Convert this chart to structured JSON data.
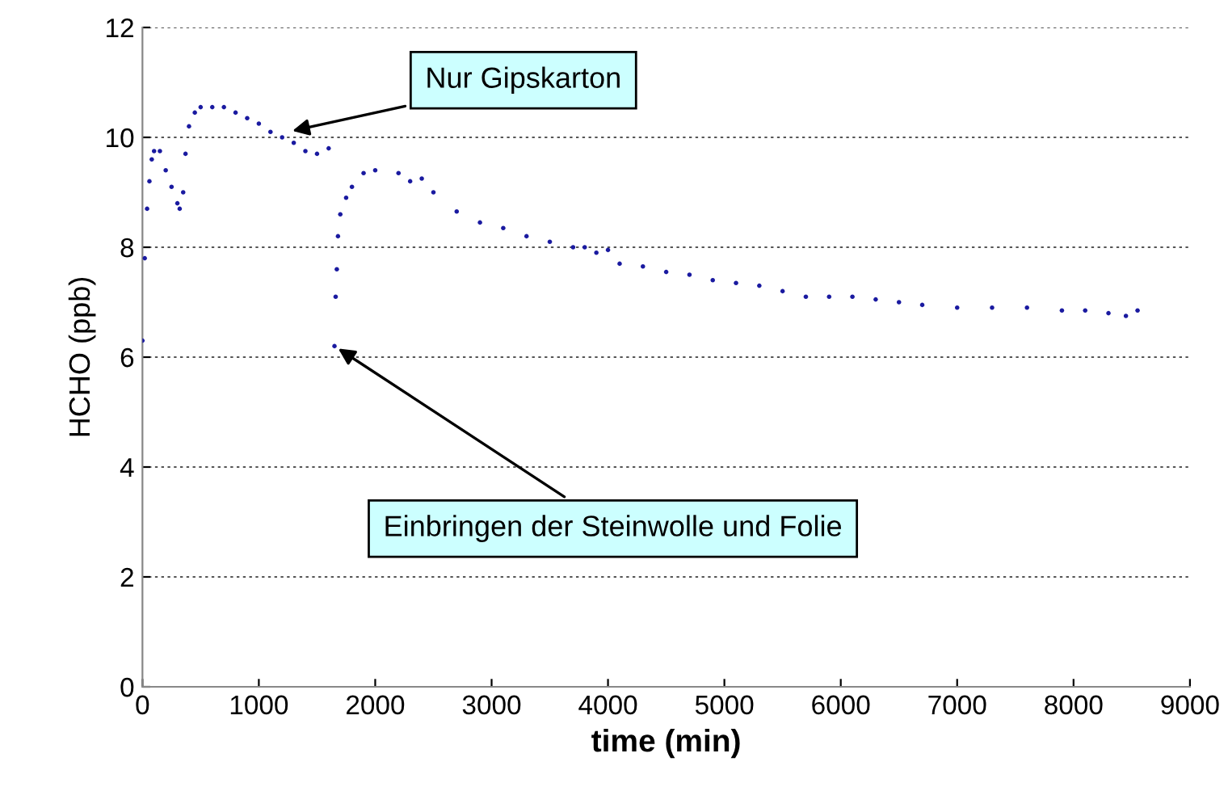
{
  "chart_data": {
    "type": "scatter",
    "xlabel": "time (min)",
    "ylabel": "HCHO (ppb)",
    "xlim": [
      0,
      9000
    ],
    "xticks": [
      0,
      1000,
      2000,
      3000,
      4000,
      5000,
      6000,
      7000,
      8000,
      9000
    ],
    "ylim": [
      0,
      12
    ],
    "yticks": [
      0,
      2,
      4,
      6,
      8,
      10,
      12
    ],
    "grid": "y",
    "legend": false,
    "marker": "circle",
    "series": [
      {
        "color": "#1a1aa0",
        "x": [
          0,
          20,
          40,
          60,
          80,
          100,
          150,
          200,
          250,
          300,
          320,
          350,
          370,
          400,
          450,
          500,
          600,
          700,
          800,
          900,
          1000,
          1100,
          1200,
          1300,
          1400,
          1500,
          1600,
          1650,
          1660,
          1670,
          1680,
          1700,
          1750,
          1800,
          1900,
          2000,
          2200,
          2300,
          2400,
          2500,
          2700,
          2900,
          3100,
          3300,
          3500,
          3700,
          3800,
          3900,
          4000,
          4100,
          4300,
          4500,
          4700,
          4900,
          5100,
          5300,
          5500,
          5700,
          5900,
          6100,
          6300,
          6500,
          6700,
          7000,
          7300,
          7600,
          7900,
          8100,
          8300,
          8450,
          8550
        ],
        "values": [
          6.3,
          7.8,
          8.7,
          9.2,
          9.6,
          9.75,
          9.75,
          9.4,
          9.1,
          8.8,
          8.7,
          9.0,
          9.7,
          10.2,
          10.45,
          10.55,
          10.55,
          10.55,
          10.45,
          10.35,
          10.25,
          10.1,
          10.0,
          9.9,
          9.75,
          9.7,
          9.8,
          6.2,
          7.1,
          7.6,
          8.2,
          8.6,
          8.9,
          9.1,
          9.35,
          9.4,
          9.35,
          9.2,
          9.25,
          9.0,
          8.65,
          8.45,
          8.35,
          8.2,
          8.1,
          8.0,
          8.0,
          7.9,
          7.95,
          7.7,
          7.65,
          7.55,
          7.5,
          7.4,
          7.35,
          7.3,
          7.2,
          7.1,
          7.1,
          7.1,
          7.05,
          7.0,
          6.95,
          6.9,
          6.9,
          6.9,
          6.85,
          6.85,
          6.8,
          6.75,
          6.85
        ]
      }
    ],
    "annotations": [
      {
        "text": "Nur Gipskarton",
        "x": 1250,
        "y": 10.1
      },
      {
        "text": "Einbringen der Steinwolle und Folie",
        "x": 1650,
        "y": 6.2
      }
    ]
  }
}
